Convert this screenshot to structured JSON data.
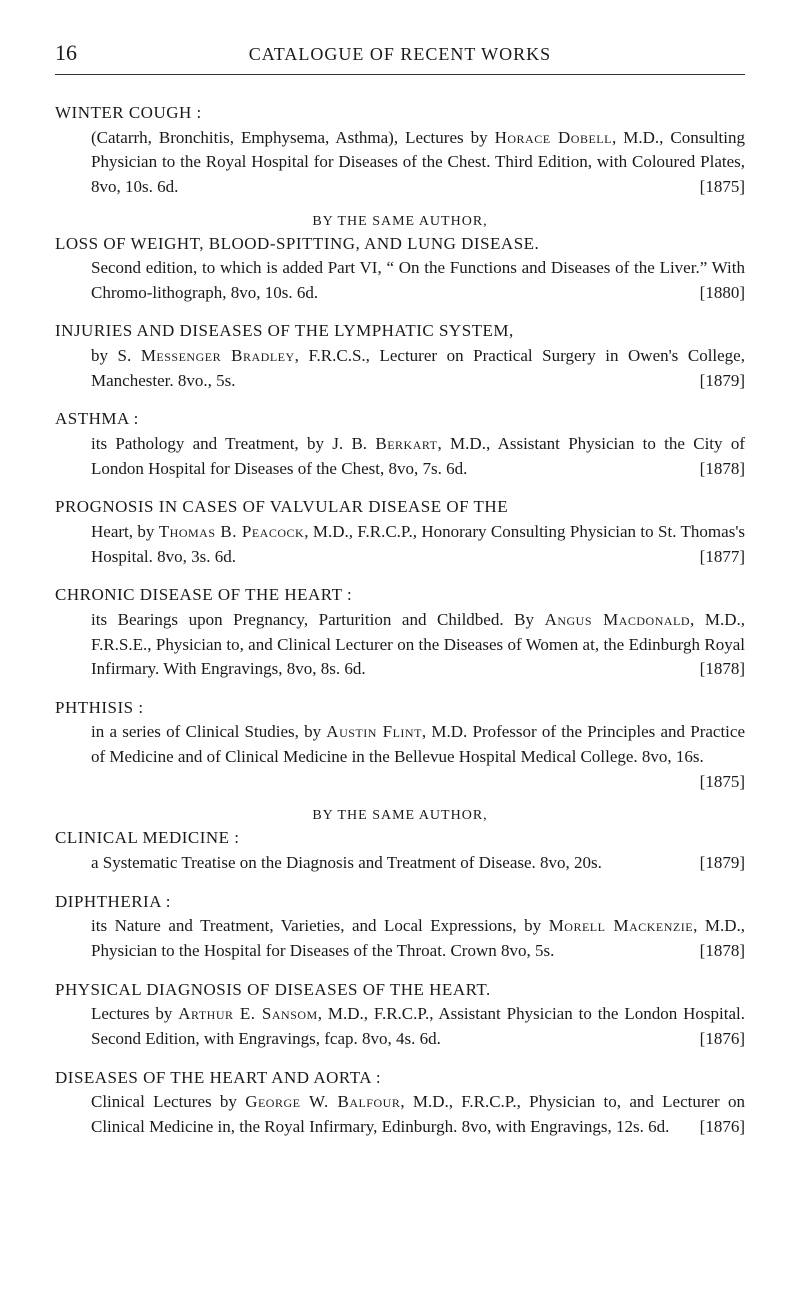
{
  "page_number": "16",
  "header": "CATALOGUE OF RECENT WORKS",
  "byline_same_author": "BY THE SAME AUTHOR,",
  "entries": [
    {
      "title": "WINTER COUGH :",
      "body_pre": "(Catarrh, Bronchitis, Emphysema, Asthma), Lectures by ",
      "author_sc": "Horace Dobell",
      "body_post": ", M.D., Consulting Physician to the Royal Hospital for Diseases of the Chest. Third Edition, with Coloured Plates, 8vo, 10s. 6d.",
      "year": "[1875]"
    },
    {
      "title": "LOSS OF WEIGHT, BLOOD-SPITTING, AND LUNG DISEASE.",
      "body_pre": "Second edition, to which is added Part VI, “ On the Functions and Diseases of the Liver.” With Chromo-lithograph, 8vo, 10s. 6d.",
      "author_sc": "",
      "body_post": "",
      "year": "[1880]"
    },
    {
      "title": "INJURIES AND DISEASES OF THE LYMPHATIC SYSTEM,",
      "body_pre": "by S. ",
      "author_sc": "Messenger Bradley",
      "body_post": ", F.R.C.S., Lecturer on Practical Surgery in Owen's College, Manchester. 8vo., 5s.",
      "year": "[1879]"
    },
    {
      "title": "ASTHMA :",
      "body_pre": "its Pathology and Treatment, by J. B. ",
      "author_sc": "Berkart",
      "body_post": ", M.D., Assistant Physician to the City of London Hospital for Diseases of the Chest, 8vo, 7s. 6d.",
      "year": "[1878]"
    },
    {
      "title": "PROGNOSIS IN CASES OF VALVULAR DISEASE OF THE",
      "body_pre": "Heart, by ",
      "author_sc": "Thomas B. Peacock",
      "body_post": ", M.D., F.R.C.P., Honorary Consulting Physician to St. Thomas's Hospital. 8vo, 3s. 6d.",
      "year": "[1877]"
    },
    {
      "title": "CHRONIC DISEASE OF THE HEART :",
      "body_pre": "its Bearings upon Pregnancy, Parturition and Childbed. By ",
      "author_sc": "Angus Macdonald",
      "body_post": ", M.D., F.R.S.E., Physician to, and Clinical Lecturer on the Diseases of Women at, the Edinburgh Royal Infirmary. With Engravings, 8vo, 8s. 6d.",
      "year": "[1878]"
    },
    {
      "title": "PHTHISIS :",
      "body_pre": "in a series of Clinical Studies, by ",
      "author_sc": "Austin Flint",
      "body_post": ", M.D. Professor of the Principles and Practice of Medicine and of Clinical Medicine in the Bellevue Hospital Medical College. 8vo, 16s.",
      "year": "[1875]"
    },
    {
      "title": "CLINICAL MEDICINE :",
      "body_pre": "a Systematic Treatise on the Diagnosis and Treatment of Disease. 8vo, 20s.",
      "author_sc": "",
      "body_post": "",
      "year": "[1879]"
    },
    {
      "title": "DIPHTHERIA :",
      "body_pre": "its Nature and Treatment, Varieties, and Local Expressions, by ",
      "author_sc": "Morell Mackenzie",
      "body_post": ", M.D., Physician to the Hospital for Diseases of the Throat. Crown 8vo, 5s.",
      "year": "[1878]"
    },
    {
      "title": "PHYSICAL DIAGNOSIS OF DISEASES OF THE HEART.",
      "body_pre": "Lectures by ",
      "author_sc": "Arthur E. Sansom",
      "body_post": ", M.D., F.R.C.P., Assistant Physician to the London Hospital. Second Edition, with Engravings, fcap. 8vo, 4s. 6d.",
      "year": "[1876]"
    },
    {
      "title": "DISEASES OF THE HEART AND AORTA :",
      "body_pre": "Clinical Lectures by ",
      "author_sc": "George W. Balfour",
      "body_post": ", M.D., F.R.C.P., Physician to, and Lecturer on Clinical Medicine in, the Royal Infirmary, Edinburgh. 8vo, with Engravings, 12s. 6d.",
      "year": "[1876]"
    }
  ]
}
